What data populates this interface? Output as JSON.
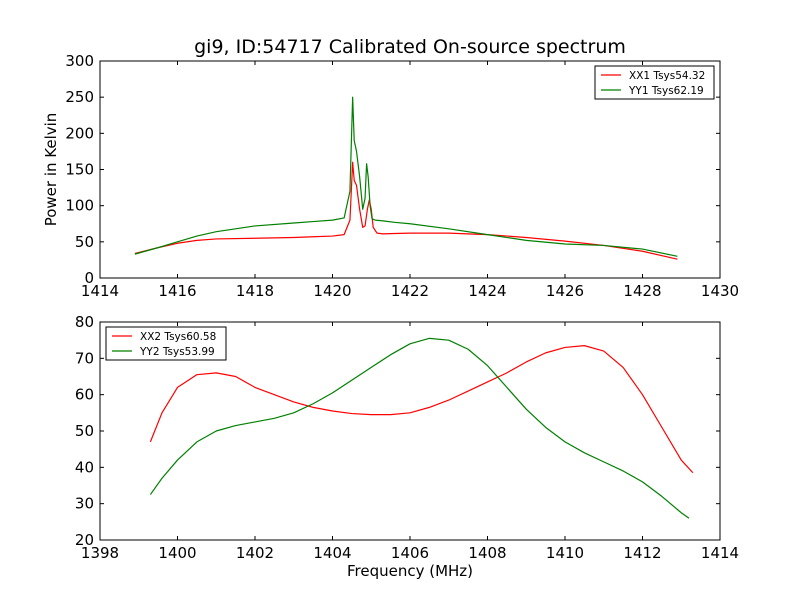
{
  "figure": {
    "title": "gi9, ID:54717 Calibrated On-source spectrum"
  },
  "chart_data": [
    {
      "type": "line",
      "ylabel": "Power in Kelvin",
      "xlabel": "",
      "xlim": [
        1414,
        1430
      ],
      "ylim": [
        0,
        300
      ],
      "xticks": [
        1414,
        1416,
        1418,
        1420,
        1422,
        1424,
        1426,
        1428,
        1430
      ],
      "yticks": [
        0,
        50,
        100,
        150,
        200,
        250,
        300
      ],
      "legend": "top-right",
      "series": [
        {
          "name": "XX1 Tsys54.32",
          "color": "#ff0000",
          "x": [
            1414.9,
            1415.5,
            1416,
            1416.5,
            1417,
            1418,
            1419,
            1419.5,
            1420,
            1420.3,
            1420.45,
            1420.52,
            1420.56,
            1420.62,
            1420.7,
            1420.78,
            1420.84,
            1420.9,
            1420.95,
            1421.0,
            1421.05,
            1421.15,
            1421.3,
            1421.6,
            1422,
            1423,
            1424,
            1425,
            1426,
            1427,
            1428,
            1428.9
          ],
          "y": [
            34,
            42,
            48,
            52,
            54,
            55,
            56,
            57,
            58,
            60,
            80,
            160,
            135,
            128,
            95,
            70,
            72,
            95,
            108,
            95,
            70,
            62,
            61,
            61.5,
            62,
            62,
            60,
            56,
            51,
            45,
            37,
            26
          ]
        },
        {
          "name": "YY1 Tsys62.19",
          "color": "#008000",
          "x": [
            1414.9,
            1415.5,
            1416,
            1416.5,
            1417,
            1417.5,
            1418,
            1419,
            1419.5,
            1420,
            1420.3,
            1420.45,
            1420.52,
            1420.56,
            1420.62,
            1420.7,
            1420.78,
            1420.84,
            1420.88,
            1420.92,
            1420.97,
            1421.02,
            1421.1,
            1421.3,
            1421.6,
            1422,
            1423,
            1424,
            1425,
            1426,
            1427,
            1428,
            1428.9
          ],
          "y": [
            33,
            42,
            50,
            58,
            64,
            68,
            72,
            76,
            78,
            80,
            83,
            120,
            250,
            190,
            175,
            140,
            95,
            110,
            158,
            140,
            100,
            82,
            80,
            79,
            77,
            75,
            68,
            60,
            52,
            47,
            45,
            40,
            30
          ]
        }
      ]
    },
    {
      "type": "line",
      "ylabel": "",
      "xlabel": "Frequency (MHz)",
      "xlim": [
        1398,
        1414
      ],
      "ylim": [
        20,
        80
      ],
      "xticks": [
        1398,
        1400,
        1402,
        1404,
        1406,
        1408,
        1410,
        1412,
        1414
      ],
      "yticks": [
        20,
        30,
        40,
        50,
        60,
        70,
        80
      ],
      "legend": "top-left",
      "series": [
        {
          "name": "XX2 Tsys60.58",
          "color": "#ff0000",
          "x": [
            1399.3,
            1399.6,
            1400,
            1400.5,
            1401,
            1401.5,
            1402,
            1402.5,
            1403,
            1403.5,
            1404,
            1404.5,
            1405,
            1405.5,
            1406,
            1406.5,
            1407,
            1407.5,
            1408,
            1408.5,
            1409,
            1409.5,
            1410,
            1410.5,
            1411,
            1411.5,
            1412,
            1412.5,
            1413,
            1413.3
          ],
          "y": [
            47,
            55,
            62,
            65.5,
            66,
            65,
            62,
            60,
            58,
            56.5,
            55.5,
            54.8,
            54.5,
            54.5,
            55,
            56.5,
            58.5,
            61,
            63.5,
            66,
            69,
            71.5,
            73,
            73.5,
            72,
            67.5,
            60,
            51,
            42,
            38.5
          ]
        },
        {
          "name": "YY2 Tsys53.99",
          "color": "#008000",
          "x": [
            1399.3,
            1399.6,
            1400,
            1400.5,
            1401,
            1401.5,
            1402,
            1402.5,
            1403,
            1403.5,
            1404,
            1404.5,
            1405,
            1405.5,
            1406,
            1406.5,
            1407,
            1407.5,
            1408,
            1408.5,
            1409,
            1409.5,
            1410,
            1410.5,
            1411,
            1411.5,
            1412,
            1412.5,
            1413,
            1413.2
          ],
          "y": [
            32.5,
            37,
            42,
            47,
            50,
            51.5,
            52.5,
            53.5,
            55,
            57.5,
            60.5,
            64,
            67.5,
            71,
            74,
            75.5,
            75,
            72.5,
            68,
            62,
            56,
            51,
            47,
            44,
            41.5,
            39,
            36,
            32,
            27.5,
            26
          ]
        }
      ]
    }
  ]
}
